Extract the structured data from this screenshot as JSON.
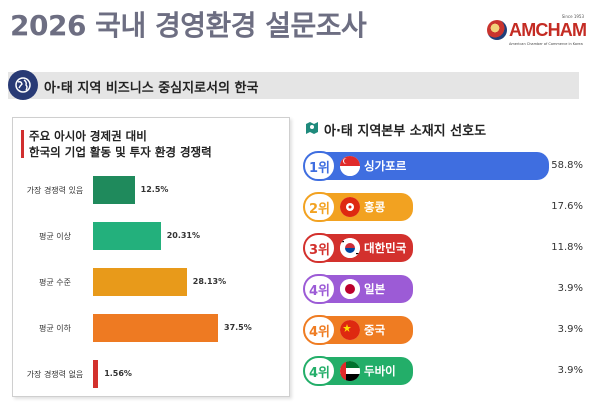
{
  "header": {
    "title": "2026 국내 경영환경 설문조사"
  },
  "logo": {
    "name": "AMCHAM",
    "since": "Since 1953",
    "subtitle": "American Chamber of Commerce in Korea"
  },
  "banner": {
    "text": "아·태 지역 비즈니스 중심지로서의 한국"
  },
  "left_panel": {
    "title_line1": "주요 아시아 경제권 대비",
    "title_line2": "한국의 기업 활동 및 투자 환경 경쟁력"
  },
  "right_panel": {
    "title": "아·태 지역본부 소재지 선호도"
  },
  "chart_data": [
    {
      "type": "bar",
      "orientation": "horizontal",
      "title": "주요 아시아 경제권 대비 한국의 기업 활동 및 투자 환경 경쟁력",
      "categories": [
        "가장 경쟁력 있음",
        "평균 이상",
        "평균 수준",
        "평균 이하",
        "가장 경쟁력 없음"
      ],
      "values": [
        12.5,
        20.31,
        28.13,
        37.5,
        1.56
      ],
      "value_labels": [
        "12.5%",
        "20.31%",
        "28.13%",
        "37.5%",
        "1.56%"
      ],
      "unit": "%",
      "colors": [
        "#1f8a5c",
        "#23b07c",
        "#e89a1a",
        "#ee7a22",
        "#d3312d"
      ]
    },
    {
      "type": "bar",
      "orientation": "horizontal",
      "title": "아·태 지역본부 소재지 선호도",
      "ranks": [
        "1위",
        "2위",
        "3위",
        "4위",
        "4위",
        "4위"
      ],
      "categories": [
        "싱가포르",
        "홍콩",
        "대한민국",
        "일본",
        "중국",
        "두바이"
      ],
      "values": [
        58.8,
        17.6,
        11.8,
        3.9,
        3.9,
        3.9
      ],
      "value_labels": [
        "58.8%",
        "17.6%",
        "11.8%",
        "3.9%",
        "3.9%",
        "3.9%"
      ],
      "unit": "%",
      "colors": [
        "#3f6ee0",
        "#f2a221",
        "#d3312d",
        "#9c5bd6",
        "#ef7c22",
        "#23ae69"
      ]
    }
  ]
}
